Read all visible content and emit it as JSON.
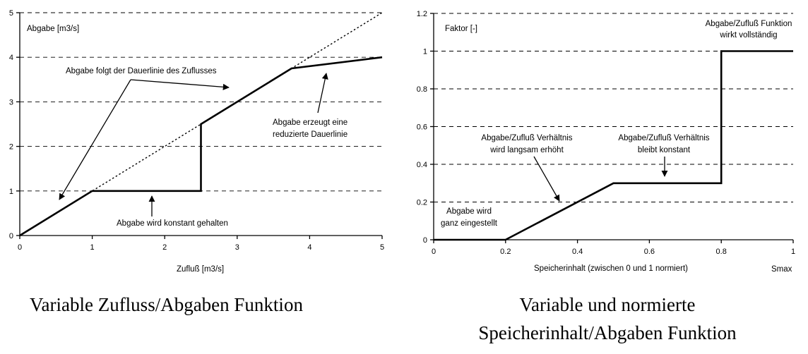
{
  "chart_data": [
    {
      "type": "line",
      "ylabel": "Abgabe [m3/s]",
      "xlabel": "Zufluß [m3/s]",
      "xlim": [
        0,
        5
      ],
      "ylim": [
        0,
        5
      ],
      "xticks": [
        "0",
        "1",
        "2",
        "3",
        "4",
        "5"
      ],
      "yticks": [
        "0",
        "1",
        "2",
        "3",
        "4",
        "5"
      ],
      "grid": "horizontal-dashed",
      "series": [
        {
          "style": "solid",
          "x": [
            0,
            1,
            2.5,
            2.5,
            3.75,
            5
          ],
          "y": [
            0,
            1,
            1,
            2.5,
            3.75,
            4
          ]
        },
        {
          "style": "dotted",
          "x": [
            0,
            5
          ],
          "y": [
            0,
            5
          ]
        }
      ],
      "annotations": {
        "follow": "Abgabe folgt der Dauerlinie des Zuflusses",
        "reduced_1": "Abgabe erzeugt eine",
        "reduced_2": "reduzierte Dauerlinie",
        "constant": "Abgabe wird konstant gehalten"
      },
      "caption": "Variable Zufluss/Abgaben Funktion"
    },
    {
      "type": "line",
      "ylabel": "Faktor [-]",
      "xlabel": "Speicherinhalt (zwischen 0 und 1 normiert)",
      "xlabel_right": "Smax",
      "xlim": [
        0,
        1
      ],
      "ylim": [
        0,
        1.2
      ],
      "xticks": [
        "0",
        "0.2",
        "0.4",
        "0.6",
        "0.8",
        "1"
      ],
      "yticks": [
        "0",
        "0.2",
        "0.4",
        "0.6",
        "0.8",
        "1",
        "1.2"
      ],
      "grid": "horizontal-dashed",
      "series": [
        {
          "style": "solid",
          "x": [
            0,
            0.2,
            0.5,
            0.8,
            0.8,
            1
          ],
          "y": [
            0,
            0,
            0.3,
            0.3,
            1,
            1
          ]
        }
      ],
      "annotations": {
        "full_1": "Abgabe/Zufluß Funktion",
        "full_2": "wirkt vollständig",
        "slow_1": "Abgabe/Zufluß Verhältnis",
        "slow_2": "wird langsam erhöht",
        "const_1": "Abgabe/Zufluß Verhältnis",
        "const_2": "bleibt konstant",
        "off_1": "Abgabe wird",
        "off_2": "ganz eingestellt"
      },
      "caption_1": "Variable und normierte",
      "caption_2": "Speicherinhalt/Abgaben Funktion"
    }
  ]
}
